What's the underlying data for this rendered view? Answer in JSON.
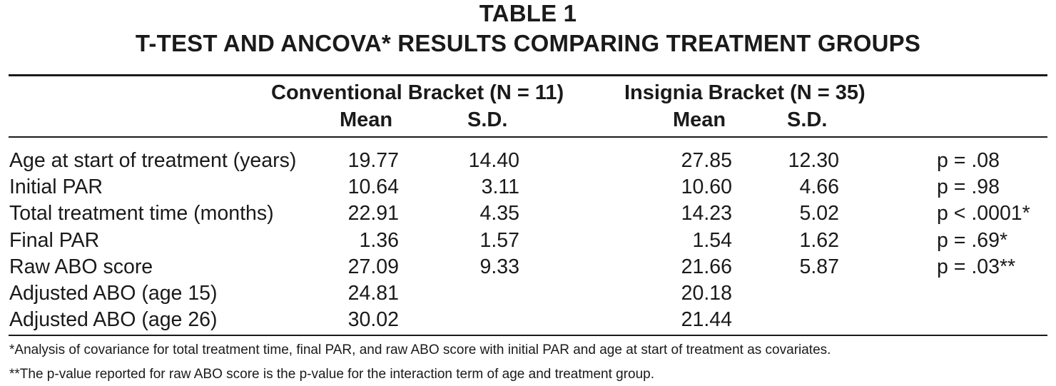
{
  "title": "TABLE 1",
  "subtitle": "T-TEST AND ANCOVA* RESULTS COMPARING TREATMENT GROUPS",
  "groups": [
    {
      "label": "Conventional Bracket (N = 11)",
      "mean_label": "Mean",
      "sd_label": "S.D."
    },
    {
      "label": "Insignia Bracket (N = 35)",
      "mean_label": "Mean",
      "sd_label": "S.D."
    }
  ],
  "rows": [
    {
      "label": "Age at start of treatment (years)",
      "conv_mean": "19.77",
      "conv_sd": "14.40",
      "ins_mean": "27.85",
      "ins_sd": "12.30",
      "p": "p = .08"
    },
    {
      "label": "Initial PAR",
      "conv_mean": "10.64",
      "conv_sd": "3.11",
      "ins_mean": "10.60",
      "ins_sd": "4.66",
      "p": "p = .98"
    },
    {
      "label": "Total treatment time (months)",
      "conv_mean": "22.91",
      "conv_sd": "4.35",
      "ins_mean": "14.23",
      "ins_sd": "5.02",
      "p": "p < .0001*"
    },
    {
      "label": "Final PAR",
      "conv_mean": "1.36",
      "conv_sd": "1.57",
      "ins_mean": "1.54",
      "ins_sd": "1.62",
      "p": "p = .69*"
    },
    {
      "label": "Raw ABO score",
      "conv_mean": "27.09",
      "conv_sd": "9.33",
      "ins_mean": "21.66",
      "ins_sd": "5.87",
      "p": "p = .03**"
    },
    {
      "label": "Adjusted ABO (age 15)",
      "conv_mean": "24.81",
      "conv_sd": "",
      "ins_mean": "20.18",
      "ins_sd": "",
      "p": ""
    },
    {
      "label": "Adjusted ABO (age 26)",
      "conv_mean": "30.02",
      "conv_sd": "",
      "ins_mean": "21.44",
      "ins_sd": "",
      "p": ""
    }
  ],
  "footnotes": [
    "*Analysis of covariance for total treatment time, final PAR, and raw ABO score with initial PAR and age at start of treatment as covariates.",
    "**The p-value reported for raw ABO score is the p-value for the interaction term of age and treatment group."
  ]
}
